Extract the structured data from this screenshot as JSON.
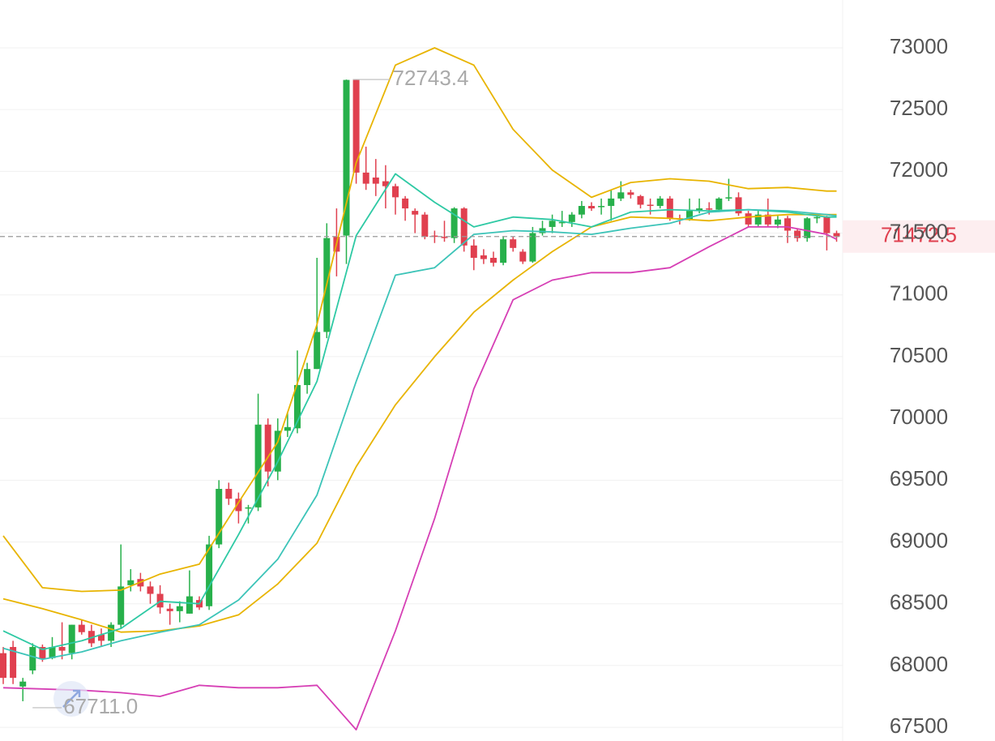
{
  "chart_data": {
    "type": "candlestick",
    "up_color": "#27b04b",
    "down_color": "#e0404f",
    "ylim": [
      67389,
      73387
    ],
    "yticks": [
      67500,
      68000,
      68500,
      69000,
      69500,
      70000,
      70500,
      71000,
      71500,
      72000,
      72500,
      73000
    ],
    "grid": true,
    "open": [
      68100,
      68150,
      67830,
      67960,
      68150,
      68060,
      68150,
      68100,
      68330,
      68280,
      68250,
      68200,
      68330,
      68650,
      68700,
      68640,
      68580,
      68460,
      68440,
      68420,
      68530,
      68480,
      68980,
      69430,
      69350,
      69270,
      69280,
      69950,
      69570,
      69900,
      69920,
      70270,
      70400,
      70700,
      71470,
      71480,
      72740,
      71990,
      71950,
      71920,
      71880,
      71780,
      71680,
      71650,
      71480,
      71470,
      71460,
      71700,
      71400,
      71320,
      71300,
      71260,
      71450,
      71350,
      71270,
      71500,
      71550,
      71580,
      71590,
      71650,
      71720,
      71710,
      71720,
      71780,
      71830,
      71800,
      71730,
      71720,
      71780,
      71620,
      71610,
      71680,
      71700,
      71690,
      71780,
      71790,
      71660,
      71570,
      71650,
      71570,
      71620,
      71520,
      71460,
      71620,
      71630,
      71500
    ],
    "high": [
      68150,
      68200,
      67900,
      68180,
      68170,
      68230,
      68350,
      68330,
      68370,
      68330,
      68300,
      68350,
      68980,
      68780,
      68750,
      68680,
      68650,
      68500,
      68520,
      68770,
      68560,
      69050,
      69500,
      69480,
      69400,
      69300,
      70200,
      70000,
      70000,
      70050,
      70550,
      70450,
      71300,
      71580,
      71700,
      72743.4,
      72740,
      72200,
      72100,
      72050,
      71900,
      71800,
      71700,
      71670,
      71520,
      71600,
      71710,
      71710,
      71450,
      71370,
      71350,
      71470,
      71470,
      71370,
      71550,
      71600,
      71650,
      71680,
      71670,
      71760,
      71750,
      71780,
      71850,
      71920,
      71850,
      71810,
      71780,
      71800,
      71800,
      71650,
      71780,
      71780,
      71750,
      71790,
      71940,
      71830,
      71680,
      71680,
      71780,
      71640,
      71640,
      71540,
      71630,
      71650,
      71640,
      71520
    ],
    "low": [
      67850,
      67850,
      67711,
      67930,
      68030,
      68050,
      68050,
      68050,
      68250,
      68150,
      68150,
      68150,
      68300,
      68600,
      68600,
      68500,
      68420,
      68330,
      68350,
      68420,
      68450,
      68450,
      68950,
      69300,
      69150,
      69150,
      69250,
      69450,
      69500,
      69850,
      69880,
      70200,
      70400,
      70650,
      71150,
      71250,
      71900,
      71850,
      71800,
      71700,
      71650,
      71600,
      71500,
      71450,
      71420,
      71430,
      71420,
      71350,
      71200,
      71250,
      71230,
      71240,
      71350,
      71250,
      71260,
      71480,
      71500,
      71550,
      71550,
      71620,
      71680,
      71650,
      71600,
      71760,
      71780,
      71700,
      71650,
      71700,
      71600,
      71570,
      71600,
      71660,
      71650,
      71670,
      71760,
      71640,
      71550,
      71550,
      71550,
      71540,
      71420,
      71430,
      71430,
      71580,
      71360,
      71430
    ],
    "close": [
      67900,
      67900,
      67870,
      68150,
      68050,
      68150,
      68120,
      68330,
      68270,
      68180,
      68200,
      68330,
      68640,
      68690,
      68640,
      68580,
      68470,
      68440,
      68480,
      68560,
      68470,
      68980,
      69430,
      69350,
      69250,
      69280,
      69950,
      69570,
      69900,
      69930,
      70270,
      70400,
      70700,
      71460,
      71350,
      72740,
      71990,
      71900,
      71900,
      71880,
      71790,
      71700,
      71650,
      71470,
      71470,
      71460,
      71700,
      71400,
      71300,
      71290,
      71260,
      71450,
      71380,
      71270,
      71500,
      71540,
      71600,
      71590,
      71650,
      71720,
      71700,
      71720,
      71780,
      71830,
      71810,
      71730,
      71720,
      71780,
      71620,
      71610,
      71680,
      71700,
      71690,
      71780,
      71790,
      71660,
      71570,
      71650,
      71570,
      71610,
      71520,
      71460,
      71620,
      71630,
      71500,
      71472.5
    ],
    "lines": [
      {
        "color": "#e8b400",
        "x": [
          0,
          4,
          8,
          12,
          16,
          20,
          24,
          28,
          32,
          36,
          40,
          44,
          48,
          52,
          56,
          60,
          64,
          68,
          72,
          76,
          80,
          84,
          85
        ],
        "values": [
          69050,
          68630,
          68600,
          68610,
          68740,
          68820,
          69320,
          69810,
          70760,
          72070,
          72860,
          73000,
          72860,
          72340,
          72010,
          71790,
          71910,
          71940,
          71920,
          71860,
          71870,
          71840,
          71840
        ]
      },
      {
        "color": "#e8b400",
        "x": [
          0,
          4,
          8,
          12,
          16,
          20,
          24,
          28,
          32,
          36,
          40,
          44,
          48,
          52,
          56,
          60,
          64,
          68,
          72,
          76,
          80,
          84,
          85
        ],
        "values": [
          68540,
          68460,
          68370,
          68270,
          68280,
          68320,
          68410,
          68660,
          68990,
          69610,
          70110,
          70500,
          70860,
          71120,
          71350,
          71550,
          71630,
          71620,
          71600,
          71630,
          71650,
          71650,
          71650
        ]
      },
      {
        "color": "#2ec9a4",
        "x": [
          0,
          4,
          8,
          12,
          16,
          20,
          24,
          28,
          32,
          36,
          40,
          44,
          48,
          52,
          56,
          60,
          64,
          68,
          72,
          76,
          80,
          84,
          85
        ],
        "values": [
          68280,
          68130,
          68200,
          68300,
          68520,
          68500,
          69060,
          69650,
          70300,
          71480,
          71980,
          71750,
          71550,
          71630,
          71610,
          71550,
          71670,
          71690,
          71680,
          71690,
          71670,
          71630,
          71630
        ]
      },
      {
        "color": "#3cc4b8",
        "x": [
          0,
          4,
          8,
          12,
          16,
          20,
          24,
          28,
          32,
          36,
          40,
          44,
          48,
          52,
          56,
          60,
          64,
          68,
          72,
          76,
          80,
          84,
          85
        ],
        "values": [
          68140,
          68050,
          68110,
          68200,
          68270,
          68330,
          68530,
          68860,
          69380,
          70300,
          71160,
          71220,
          71490,
          71520,
          71510,
          71490,
          71540,
          71580,
          71670,
          71690,
          71680,
          71650,
          71640
        ]
      },
      {
        "color": "#d63fb5",
        "x": [
          0,
          4,
          8,
          12,
          16,
          20,
          24,
          28,
          32,
          36,
          40,
          44,
          48,
          52,
          56,
          60,
          64,
          68,
          72,
          76,
          80,
          84,
          85
        ],
        "values": [
          67820,
          67810,
          67800,
          67780,
          67750,
          67840,
          67820,
          67820,
          67840,
          67480,
          68280,
          69190,
          70240,
          70960,
          71120,
          71180,
          71180,
          71220,
          71390,
          71550,
          71550,
          71490,
          71450
        ]
      }
    ],
    "max_marker": {
      "index": 35,
      "value": 72743.4
    },
    "min_marker": {
      "index": 2,
      "value": {
        "value": 67711,
        "label": "67711.0"
      }
    },
    "last_price": 71472.5
  }
}
